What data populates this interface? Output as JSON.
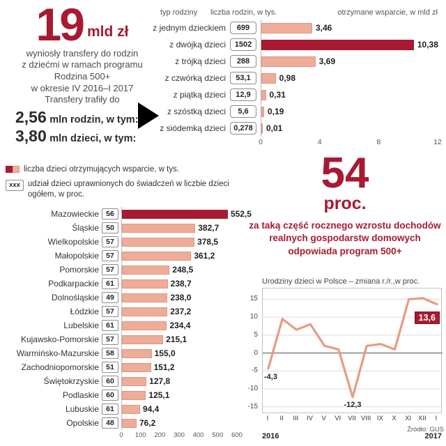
{
  "colors": {
    "accent": "#a81a31",
    "bar_fill": "#efac98",
    "bar_stroke": "#dd9681",
    "line": "#e79b82"
  },
  "header": {
    "big_number": "19",
    "big_unit": "mld zł",
    "description": "wyniosły transfery do rodzin\nz dziećmi w ramach programu\nRodzina 500+\nw okresie IV 2016–I 2017\nTransfery trafiły do",
    "stat_families_value": "2,56",
    "stat_families_label": "mln rodzin, w tym:",
    "stat_children_value": "3,80",
    "stat_children_label": "mln dzieci, w tym:"
  },
  "legend": {
    "item1": "liczba dzieci otrzymujących wsparcie, w tys.",
    "badge_sample": "xxx",
    "item2": "udział dzieci uprawnionych do świadczeń w liczbie dzieci ogółem, w proc."
  },
  "highlight": {
    "value": "54",
    "unit": "proc.",
    "text": "za taką część rocznego wzrostu dochodów realnych gospodarstw domowych odpowiada program 500+"
  },
  "source": "Źródło: GUS",
  "chart_data": [
    {
      "id": "families",
      "type": "bar",
      "column_headers": [
        "typ rodziny",
        "liczba rodzin, w tys.",
        "otrzymane wsparcie, w mld zł"
      ],
      "categories": [
        "z jednym dzieckiem",
        "z dwójką dzieci",
        "z trójką dzieci",
        "z czwórką dzieci",
        "z piątką dzieci",
        "z szóstką dzieci",
        "z siódemką dzieci"
      ],
      "counts_thousands": [
        "699",
        "1502",
        "288",
        "53,1",
        "12,9",
        "5,6",
        "0,278"
      ],
      "values": [
        3.46,
        10.38,
        3.69,
        0.98,
        0.31,
        0.19,
        0.01
      ],
      "value_labels": [
        "3,46",
        "10,38",
        "3,69",
        "0,98",
        "0,31",
        "0,19",
        "0,01"
      ],
      "highlight_index": 1,
      "xlim": [
        0,
        12
      ],
      "xticks": [
        "0",
        "4",
        "8",
        "12"
      ]
    },
    {
      "id": "regions",
      "type": "bar",
      "categories": [
        "Mazowieckie",
        "Śląskie",
        "Wielkopolskie",
        "Małopolskie",
        "Pomorskie",
        "Podkarpackie",
        "Dolnośląskie",
        "Łódzkie",
        "Lubelskie",
        "Kujawsko-Pomorskie",
        "Warmińsko-Mazurskie",
        "Zachodniopomorskie",
        "Świętokrzyskie",
        "Podlaskie",
        "Lubuskie",
        "Opolskie"
      ],
      "share_pct": [
        "56",
        "50",
        "57",
        "57",
        "57",
        "61",
        "49",
        "57",
        "61",
        "57",
        "58",
        "51",
        "60",
        "60",
        "61",
        "48"
      ],
      "values": [
        552.5,
        382.7,
        378.5,
        361.2,
        248.5,
        238.7,
        238.0,
        237.2,
        234.4,
        215.1,
        155.0,
        151.2,
        127.8,
        125.1,
        94.4,
        76.2
      ],
      "value_labels": [
        "552,5",
        "382,7",
        "378,5",
        "361,2",
        "248,5",
        "238,7",
        "238,0",
        "237,2",
        "234,4",
        "215,1",
        "155,0",
        "151,2",
        "127,8",
        "125,1",
        "94,4",
        "76,2"
      ],
      "highlight_index": 0,
      "xlim": [
        0,
        600
      ],
      "xticks": [
        "0",
        "100",
        "200",
        "300",
        "400",
        "500",
        "600"
      ]
    },
    {
      "id": "births",
      "type": "line",
      "title": "Urodziny dzieci w Polsce – zmiana r./r.,w proc.",
      "x_labels": [
        "I",
        "II",
        "III",
        "IV",
        "V",
        "VI",
        "VII",
        "VIII",
        "IX",
        "X",
        "XI",
        "XII",
        "I"
      ],
      "year_start": "2016",
      "year_end": "2017",
      "values": [
        -4.3,
        9.5,
        6.5,
        8,
        2,
        1,
        -12.3,
        2,
        2.5,
        1,
        15,
        15.3,
        13.6
      ],
      "yticks": [
        15,
        10,
        5,
        0,
        -5,
        -10,
        -15
      ],
      "ylim": [
        -17,
        18
      ],
      "annotations": [
        {
          "index": 0,
          "label": "-4,3",
          "style": "plain",
          "align": "left"
        },
        {
          "index": 6,
          "label": "-12,3",
          "style": "plain",
          "align": "center"
        },
        {
          "index": 12,
          "label": "13,6",
          "style": "box",
          "align": "right"
        }
      ]
    }
  ]
}
